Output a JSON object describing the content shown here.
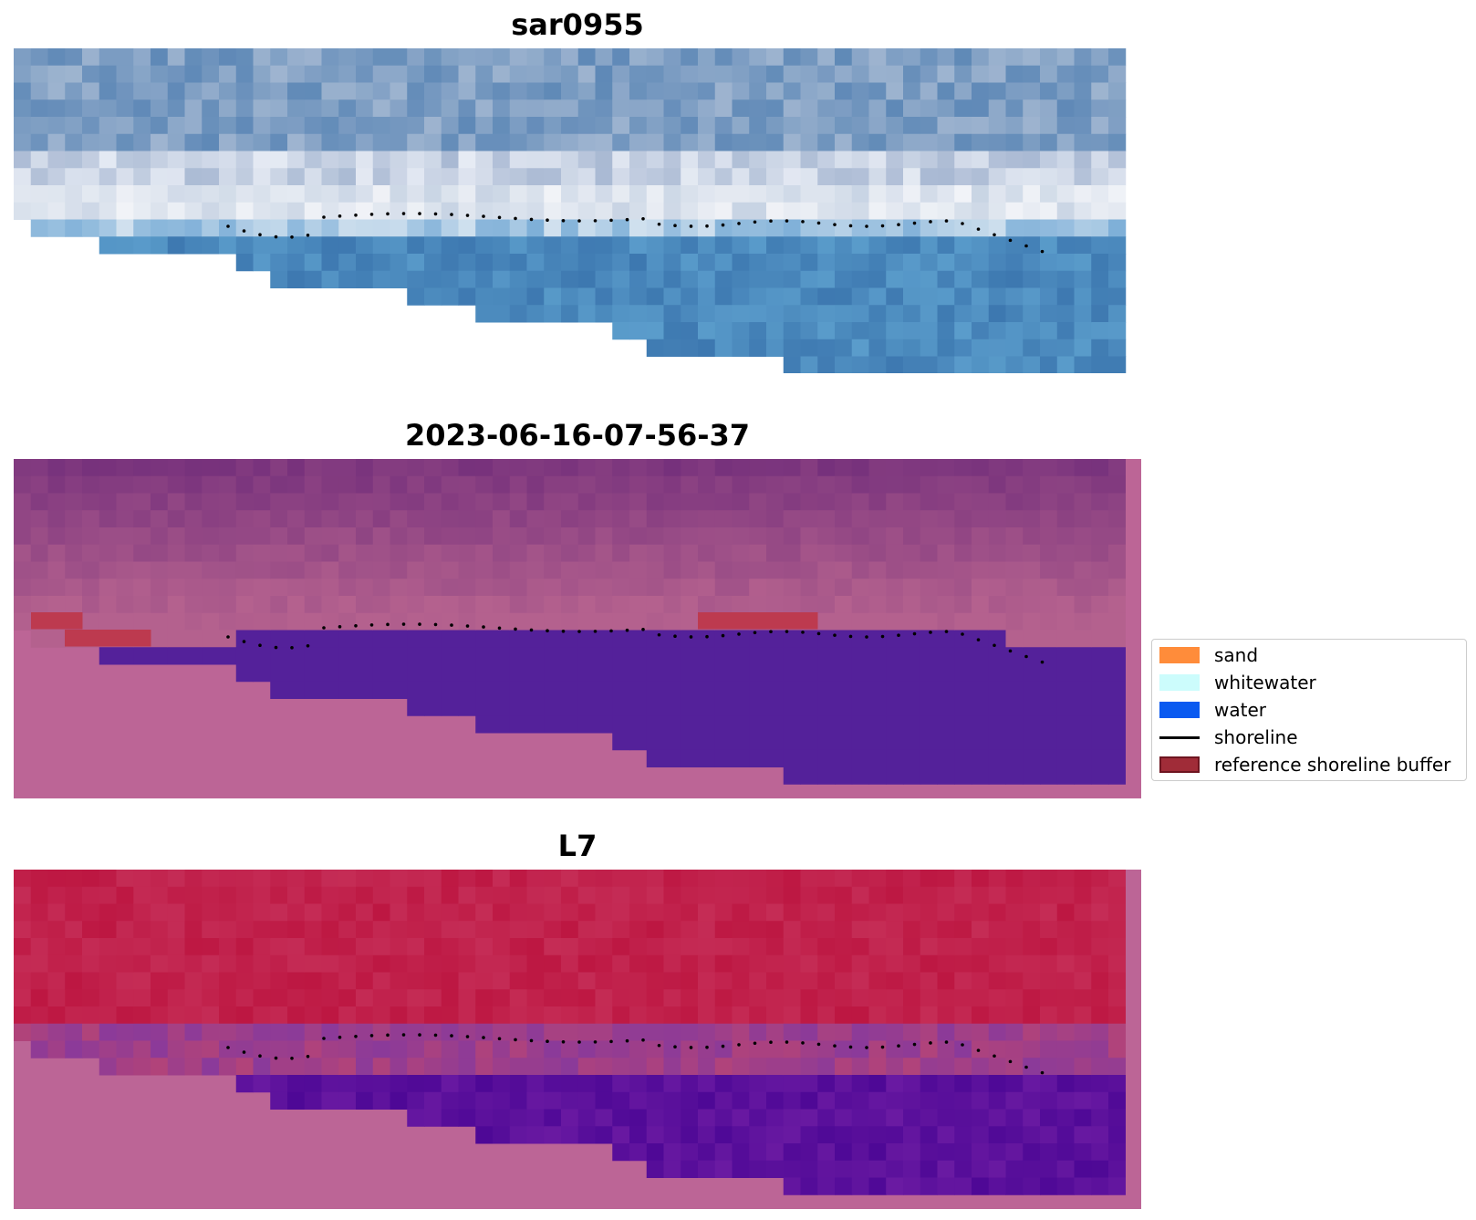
{
  "panels": [
    {
      "title": "sar0955",
      "kind": "rgb"
    },
    {
      "title": "2023-06-16-07-56-37",
      "kind": "classes"
    },
    {
      "title": "L7",
      "kind": "index"
    }
  ],
  "legend": {
    "items": [
      {
        "label": "sand",
        "color": "#ff8c3a",
        "type": "patch"
      },
      {
        "label": "whitewater",
        "color": "#ccfcfc",
        "type": "patch"
      },
      {
        "label": "water",
        "color": "#0a5af0",
        "type": "patch"
      },
      {
        "label": "shoreline",
        "color": "#000000",
        "type": "line"
      },
      {
        "label": "reference shoreline buffer",
        "color": "#a02c38",
        "type": "patch"
      }
    ]
  },
  "colors": {
    "background_pink": "#bc6596",
    "classified_water": "#54219a",
    "buffer_red": "#bd3a4f",
    "land_red": "#bd1742",
    "index_water": "#5a0a9e",
    "sky_blue": "#7c9ec4",
    "ocean_blue": "#4f8fc1",
    "shoreline_dots": "#000000"
  }
}
